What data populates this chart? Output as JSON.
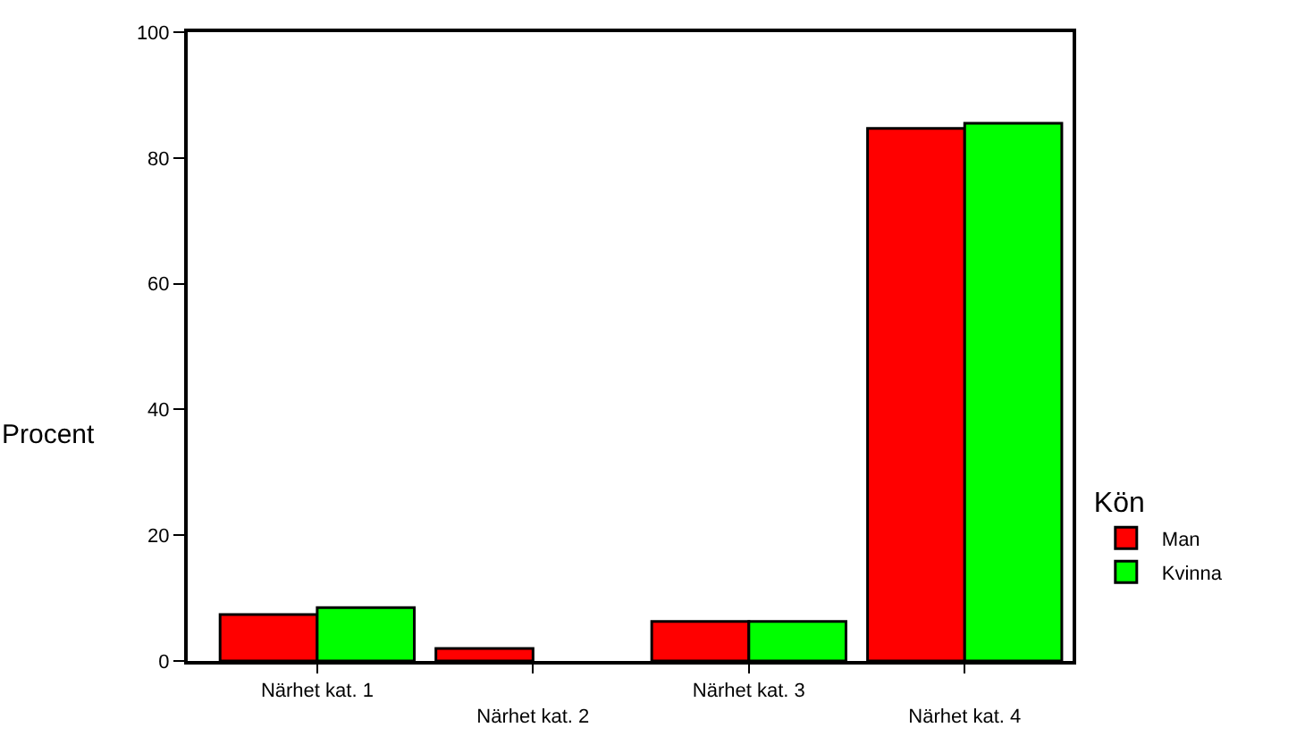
{
  "chart_data": {
    "type": "bar",
    "categories": [
      "Närhet kat. 1",
      "Närhet kat. 2",
      "Närhet kat. 3",
      "Närhet kat. 4"
    ],
    "series": [
      {
        "name": "Man",
        "color": "#ff0000",
        "values": [
          7.4,
          2.0,
          6.3,
          84.7
        ]
      },
      {
        "name": "Kvinna",
        "color": "#00ff00",
        "values": [
          8.5,
          null,
          6.3,
          85.5
        ]
      }
    ],
    "ylabel": "Procent",
    "legend_title": "Kön",
    "ylim": [
      0,
      100
    ],
    "yticks": [
      0,
      20,
      40,
      60,
      80,
      100
    ],
    "grid": false,
    "legend": "right"
  }
}
